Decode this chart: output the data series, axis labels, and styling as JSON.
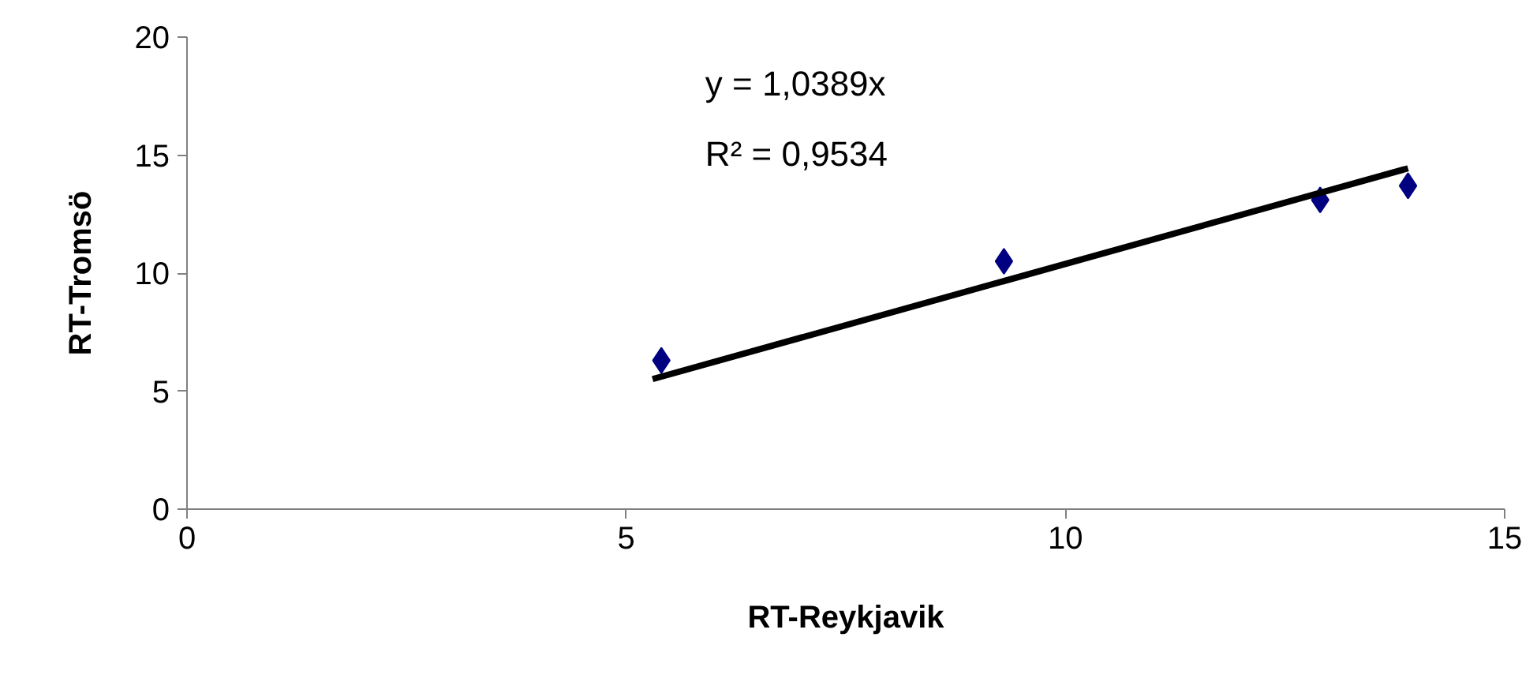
{
  "chart_data": {
    "type": "scatter",
    "xlabel": "RT-Reykjavik",
    "ylabel": "RT-Tromsö",
    "xlim": [
      0,
      15
    ],
    "xticks": [
      0,
      5,
      10,
      15
    ],
    "ylim": [
      0,
      20
    ],
    "yticks": [
      0,
      5,
      10,
      15,
      20
    ],
    "grid": false,
    "marker": "diamond",
    "series": [
      {
        "color": "#000080",
        "x": [
          5.4,
          9.3,
          12.9,
          13.9
        ],
        "values": [
          6.3,
          10.5,
          13.1,
          13.7
        ]
      },
      {
        "type": "line",
        "color": "#000000",
        "x": [
          5.3,
          13.9
        ],
        "values": [
          5.51,
          14.44
        ],
        "marker": "none"
      }
    ],
    "annotations": [
      "y = 1,0389x",
      "R² = 0,9534"
    ]
  }
}
